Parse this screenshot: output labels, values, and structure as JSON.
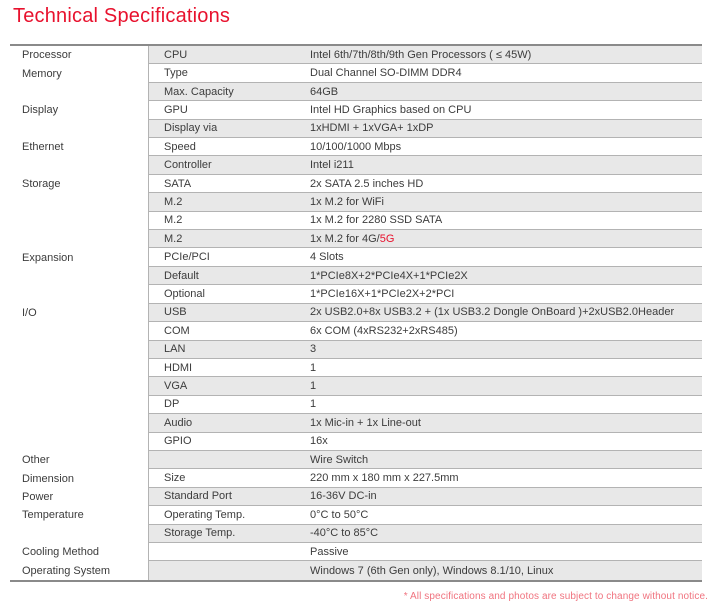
{
  "page": {
    "title": "Technical Specifications",
    "footnote": "* All specifications and photos are subject to change without notice."
  },
  "colors": {
    "accent_red": "#e8112d",
    "footnote_red": "#f0737f",
    "row_shade": "#e8e8e8",
    "divider_line": "#b3b3b3",
    "table_border": "#8a8a8a",
    "text": "#3c3c3c"
  },
  "table": {
    "columns": [
      "category",
      "item",
      "value"
    ],
    "rows": [
      {
        "category": "Processor",
        "item": "CPU",
        "value": "Intel 6th/7th/8th/9th Gen Processors ( ≤ 45W)"
      },
      {
        "category": "Memory",
        "item": "Type",
        "value": "Dual Channel SO-DIMM DDR4"
      },
      {
        "category": "",
        "item": "Max. Capacity",
        "value": "64GB"
      },
      {
        "category": "Display",
        "item": "GPU",
        "value": "Intel HD Graphics based on CPU"
      },
      {
        "category": "",
        "item": "Display via",
        "value": "1xHDMI + 1xVGA+ 1xDP"
      },
      {
        "category": "Ethernet",
        "item": "Speed",
        "value": "10/100/1000 Mbps"
      },
      {
        "category": "",
        "item": "Controller",
        "value": "Intel i211"
      },
      {
        "category": "Storage",
        "item": "SATA",
        "value": "2x SATA 2.5 inches HD"
      },
      {
        "category": "",
        "item": "M.2",
        "value": "1x M.2 for WiFi"
      },
      {
        "category": "",
        "item": "M.2",
        "value": "1x M.2 for 2280 SSD SATA"
      },
      {
        "category": "",
        "item": "M.2",
        "value": "1x M.2 for 4G/",
        "value_red": "5G"
      },
      {
        "category": "Expansion",
        "item": "PCIe/PCI",
        "value": "4 Slots"
      },
      {
        "category": "",
        "item": "Default",
        "value": "1*PCIe8X+2*PCIe4X+1*PCIe2X"
      },
      {
        "category": "",
        "item": "Optional",
        "value": "1*PCIe16X+1*PCIe2X+2*PCI"
      },
      {
        "category": "I/O",
        "item": "USB",
        "value": "2x USB2.0+8x USB3.2 + (1x USB3.2 Dongle OnBoard )+2xUSB2.0Header"
      },
      {
        "category": "",
        "item": "COM",
        "value": "6x COM (4xRS232+2xRS485)"
      },
      {
        "category": "",
        "item": "LAN",
        "value": "3"
      },
      {
        "category": "",
        "item": "HDMI",
        "value": "1"
      },
      {
        "category": "",
        "item": "VGA",
        "value": "1"
      },
      {
        "category": "",
        "item": "DP",
        "value": "1"
      },
      {
        "category": "",
        "item": "Audio",
        "value": "1x Mic-in + 1x Line-out"
      },
      {
        "category": "",
        "item": "GPIO",
        "value": "16x"
      },
      {
        "category": "Other",
        "item": "",
        "value": "Wire Switch"
      },
      {
        "category": "Dimension",
        "item": "Size",
        "value": "220 mm x 180 mm x 227.5mm"
      },
      {
        "category": "Power",
        "item": "Standard Port",
        "value": "16-36V DC-in"
      },
      {
        "category": "Temperature",
        "item": "Operating Temp.",
        "value": "0°C to 50°C"
      },
      {
        "category": "",
        "item": "Storage Temp.",
        "value": "-40°C to 85°C"
      },
      {
        "category": "Cooling Method",
        "item": "",
        "value": "Passive"
      },
      {
        "category": "Operating System",
        "item": "",
        "value": "Windows 7 (6th Gen only), Windows 8.1/10, Linux"
      }
    ]
  }
}
